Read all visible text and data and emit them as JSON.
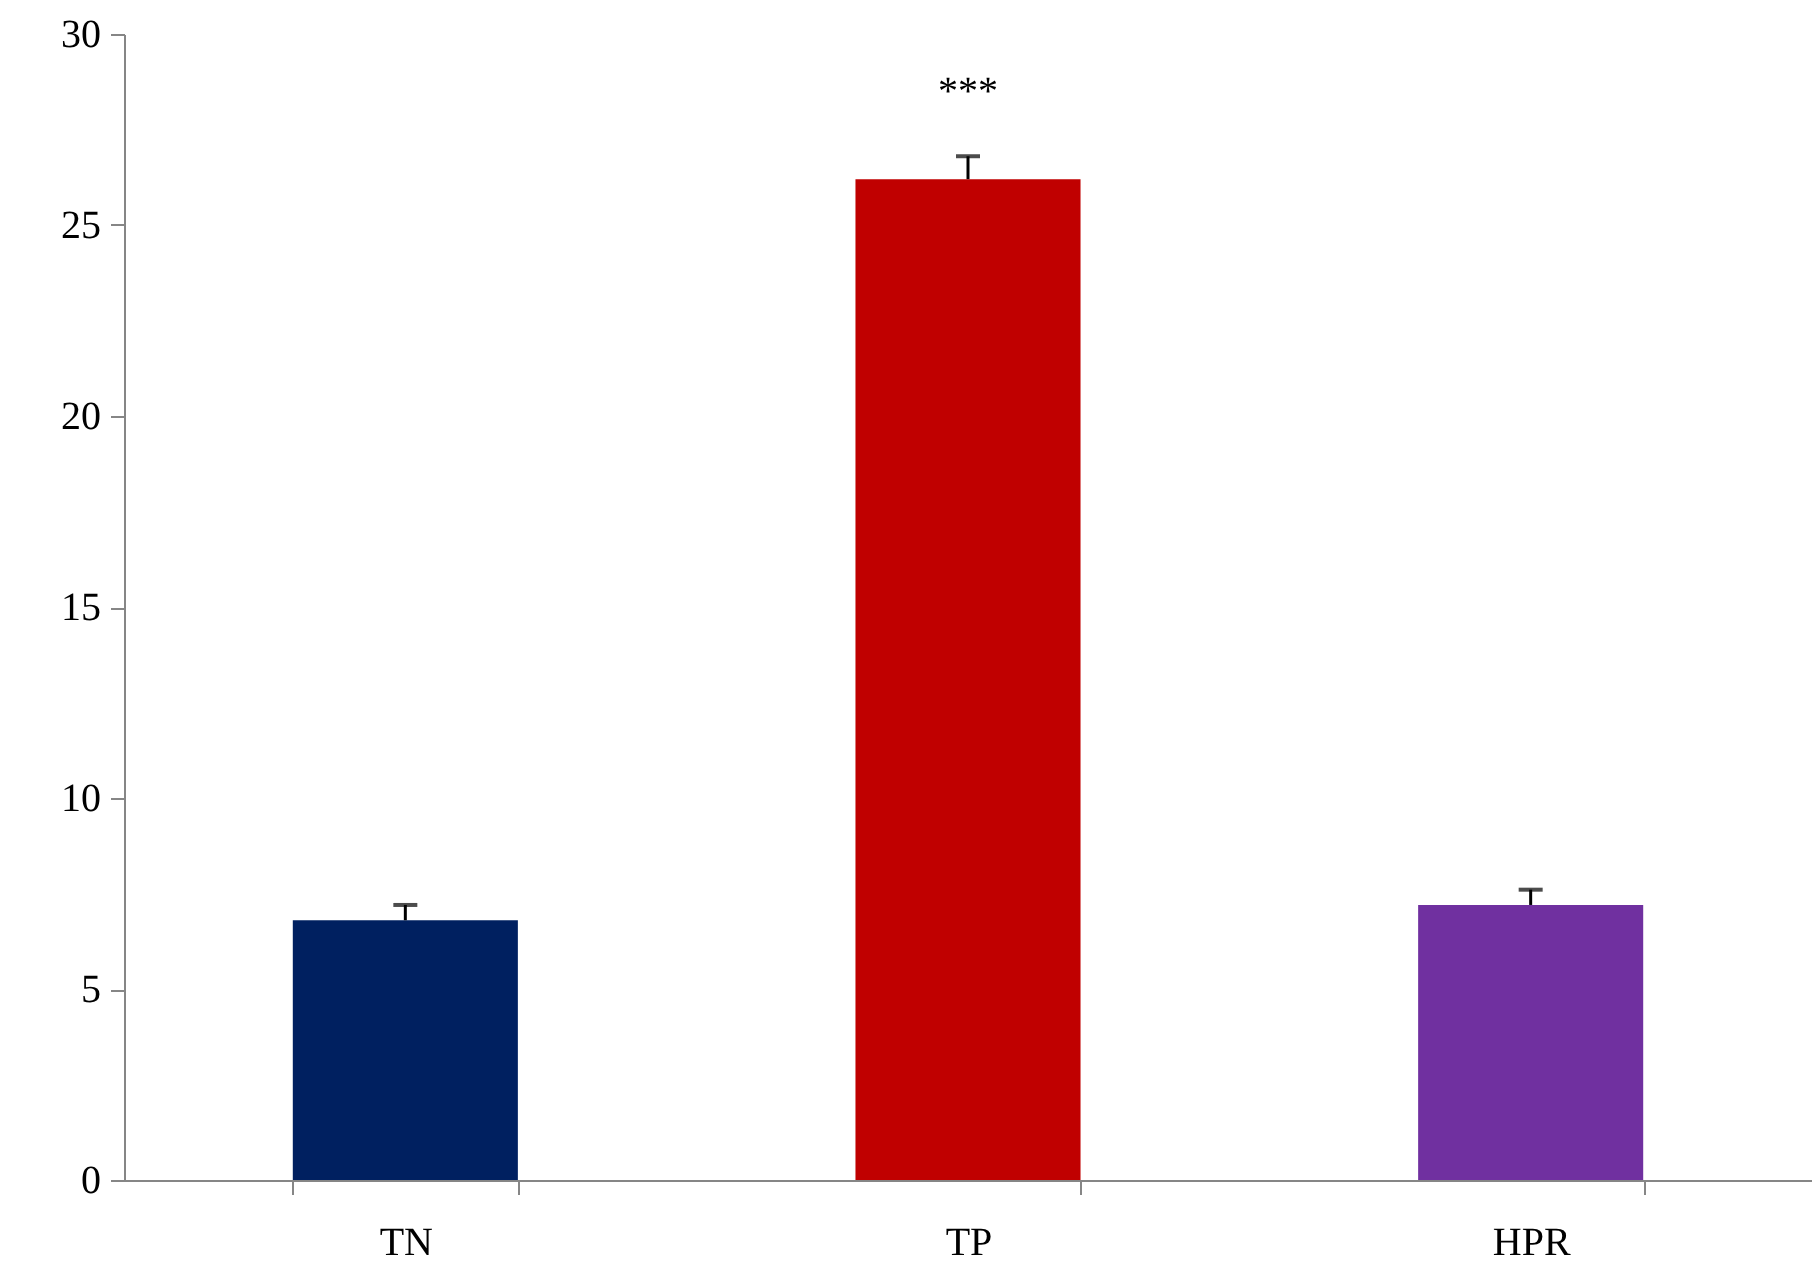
{
  "chart_data": {
    "type": "bar",
    "categories": [
      "TN",
      "TP",
      "HPR"
    ],
    "values": [
      6.8,
      26.2,
      7.2
    ],
    "colors": [
      "#002060",
      "#c00000",
      "#7030a0"
    ],
    "errors": [
      0.4,
      0.6,
      0.4
    ],
    "ylim": [
      0,
      30
    ],
    "yticks": [
      0,
      5,
      10,
      15,
      20,
      25,
      30
    ],
    "grid": false,
    "annotations": [
      "***"
    ]
  }
}
